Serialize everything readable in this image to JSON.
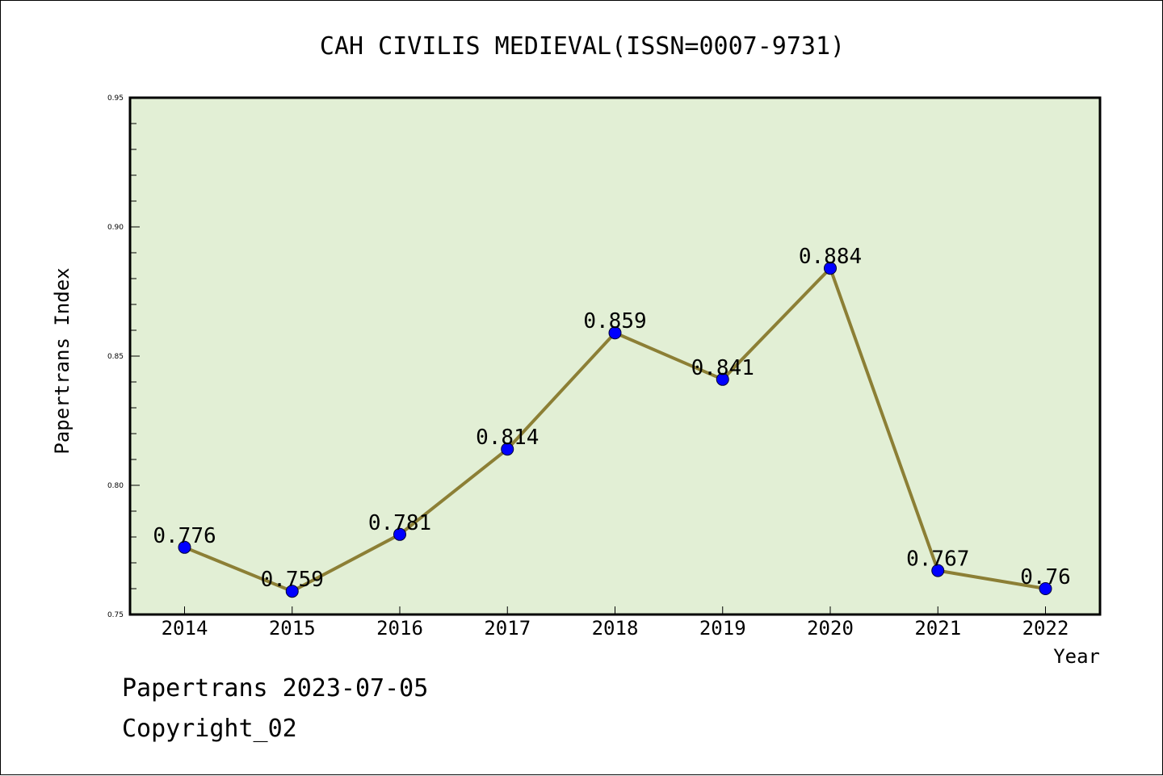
{
  "chart_data": {
    "type": "line",
    "title": "CAH CIVILIS MEDIEVAL(ISSN=0007-9731)",
    "xlabel": "Year",
    "ylabel": "Papertrans Index",
    "categories": [
      "2014",
      "2015",
      "2016",
      "2017",
      "2018",
      "2019",
      "2020",
      "2021",
      "2022"
    ],
    "values": [
      0.776,
      0.759,
      0.781,
      0.814,
      0.859,
      0.841,
      0.884,
      0.767,
      0.76
    ],
    "data_labels": [
      "0.776",
      "0.759",
      "0.781",
      "0.814",
      "0.859",
      "0.841",
      "0.884",
      "0.767",
      "0.76"
    ],
    "ylim": [
      0.75,
      0.95
    ],
    "yticks": [
      "0.75",
      "0.80",
      "0.85",
      "0.90",
      "0.95"
    ],
    "grid": false,
    "colors": {
      "plot_background": "#e2efd5",
      "line": "#8c7f35",
      "marker": "#0000ff"
    }
  },
  "footer": {
    "line1": "Papertrans 2023-07-05",
    "line2": "Copyright_02"
  }
}
